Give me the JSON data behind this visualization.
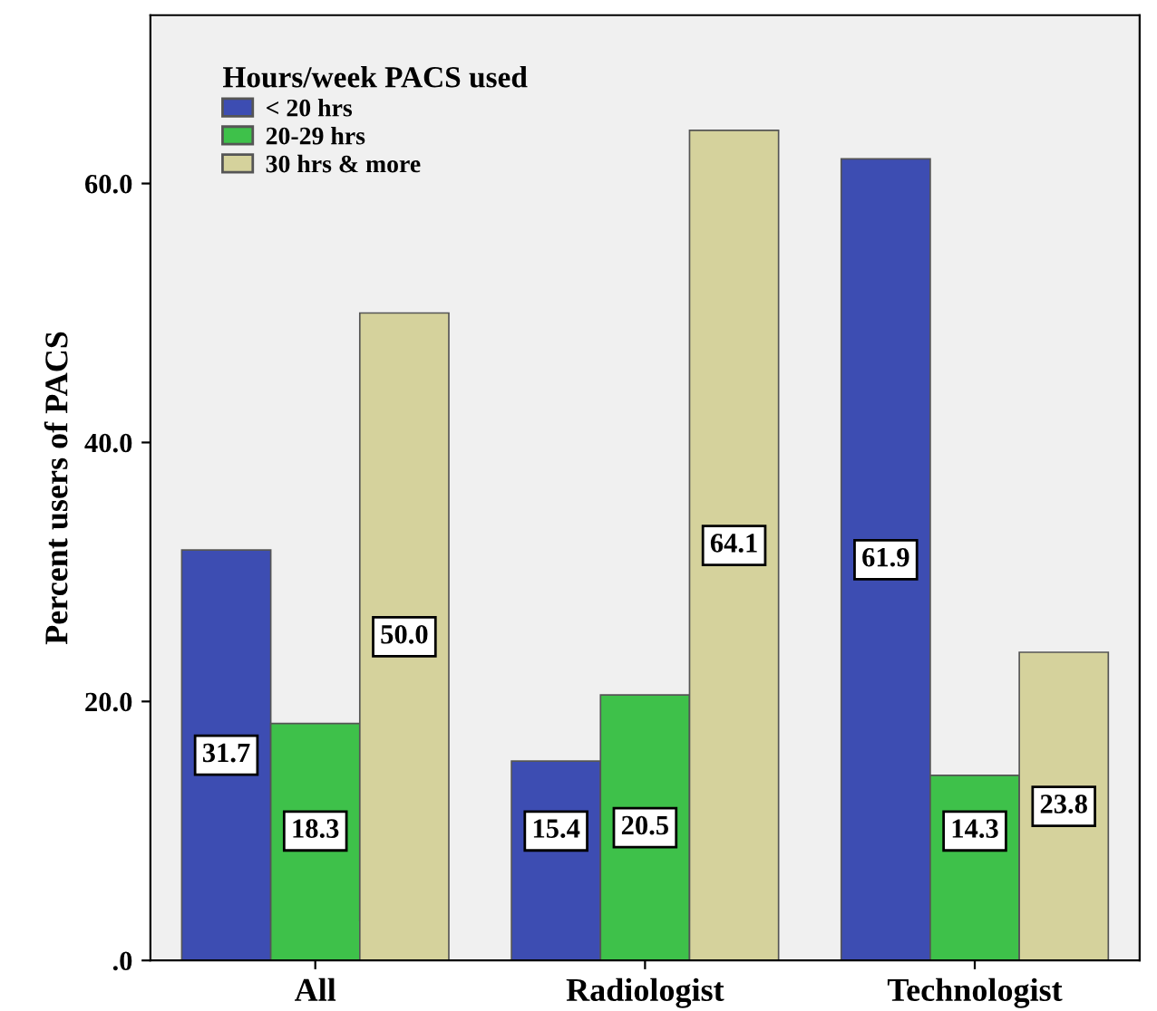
{
  "chart_data": {
    "type": "bar",
    "ylabel": "Percent users of PACS",
    "legend_title": "Hours/week PACS used",
    "categories": [
      "All",
      "Radiologist",
      "Technologist"
    ],
    "series": [
      {
        "name": "< 20 hrs",
        "color": "#3d4db2",
        "values": [
          31.7,
          15.4,
          61.9
        ],
        "value_labels": [
          "31.7",
          "15.4",
          "61.9"
        ]
      },
      {
        "name": "20-29 hrs",
        "color": "#3ec14a",
        "values": [
          18.3,
          20.5,
          14.3
        ],
        "value_labels": [
          "18.3",
          "20.5",
          "14.3"
        ]
      },
      {
        "name": "30 hrs & more",
        "color": "#d5d29c",
        "values": [
          50.0,
          64.1,
          23.8
        ],
        "value_labels": [
          "50.0",
          "64.1",
          "23.8"
        ]
      }
    ],
    "ylim": [
      0,
      73
    ],
    "yticks": [
      {
        "value": 0,
        "label": ".0"
      },
      {
        "value": 20,
        "label": "20.0"
      },
      {
        "value": 40,
        "label": "40.0"
      },
      {
        "value": 60,
        "label": "60.0"
      }
    ],
    "grid": false,
    "legend": "top left"
  }
}
